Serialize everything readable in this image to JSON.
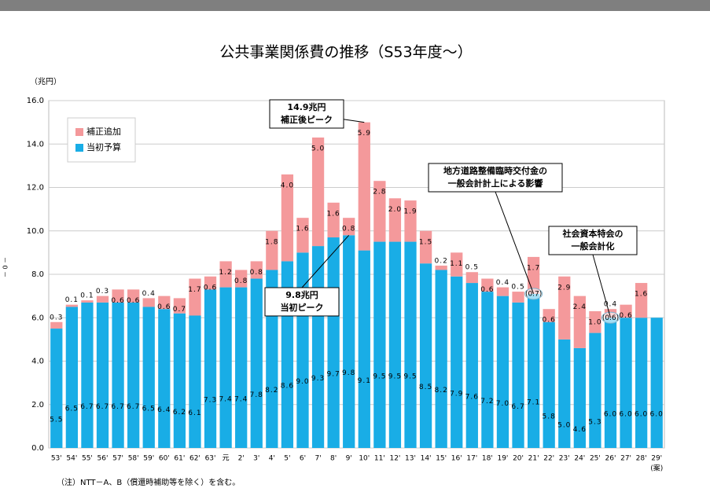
{
  "chart_data": {
    "type": "stacked_bar",
    "title": "公共事業関係費の推移（S53年度～）",
    "y_unit": "（兆円）",
    "categories": [
      "53'",
      "54'",
      "55'",
      "56'",
      "57'",
      "58'",
      "59'",
      "60'",
      "61'",
      "62'",
      "63'",
      "元",
      "2'",
      "3'",
      "4'",
      "5'",
      "6'",
      "7'",
      "8'",
      "9'",
      "10'",
      "11'",
      "12'",
      "13'",
      "14'",
      "15'",
      "16'",
      "17'",
      "18'",
      "19'",
      "20'",
      "21'",
      "22'",
      "23'",
      "24'",
      "25'",
      "26'",
      "27'",
      "28'",
      "29'"
    ],
    "last_category_note": "(案)",
    "series": [
      {
        "name": "当初予算",
        "color": "#19ade6",
        "values": [
          5.5,
          6.5,
          6.7,
          6.7,
          6.7,
          6.7,
          6.5,
          6.4,
          6.2,
          6.1,
          7.3,
          7.4,
          7.4,
          7.8,
          8.2,
          8.6,
          9.0,
          9.3,
          9.7,
          9.8,
          9.1,
          9.5,
          9.5,
          9.5,
          8.5,
          8.2,
          7.9,
          7.6,
          7.2,
          7.0,
          6.7,
          7.1,
          5.8,
          5.0,
          4.6,
          5.3,
          6.0,
          6.0,
          6.0,
          6.0
        ],
        "value_labels": [
          "5.5",
          "6.5",
          "6.7",
          "6.7",
          "6.7",
          "6.7",
          "6.5",
          "6.4",
          "6.2",
          "6.1",
          "7.3",
          "7.4",
          "7.4",
          "7.8",
          "8.2",
          "8.6",
          "9.0",
          "9.3",
          "9.7",
          "9.8",
          "9.1",
          "9.5",
          "9.5",
          "9.5",
          "8.5",
          "8.2",
          "7.9",
          "7.6",
          "7.2",
          "7.0",
          "6.7",
          "7.1",
          "5.8",
          "5.0",
          "4.6",
          "5.3",
          "6.0",
          "6.0",
          "6.0",
          "6.0"
        ]
      },
      {
        "name": "補正追加",
        "color": "#f4999b",
        "values": [
          0.3,
          0.1,
          0.1,
          0.3,
          0.6,
          0.6,
          0.4,
          0.6,
          0.7,
          1.7,
          0.6,
          1.2,
          0.8,
          0.8,
          1.8,
          4.0,
          1.6,
          5.0,
          1.6,
          0.8,
          5.9,
          2.8,
          2.0,
          1.9,
          1.5,
          0.2,
          1.1,
          0.5,
          0.6,
          0.4,
          0.5,
          1.7,
          0.6,
          2.9,
          2.4,
          1.0,
          0.4,
          0.6,
          1.6,
          null
        ],
        "value_labels": [
          "0.3",
          "0.1",
          "0.1",
          "0.3",
          "0.6",
          "0.6",
          "0.4",
          "0.6",
          "0.7",
          "1.7",
          "0.6",
          "1.2",
          "0.8",
          "0.8",
          "1.8",
          "4.0",
          "1.6",
          "5.0",
          "1.6",
          "0.8",
          "5.9",
          "2.8",
          "2.0",
          "1.9",
          "1.5",
          "0.2",
          "1.1",
          "0.5",
          "0.6",
          "0.4",
          "0.5",
          "1.7",
          "0.6",
          "2.9",
          "2.4",
          "1.0",
          "0.4",
          "0.6",
          "1.6",
          null
        ]
      }
    ],
    "ylim": [
      0,
      16
    ],
    "yticks": [
      {
        "value": 0,
        "label": "0.0"
      },
      {
        "value": 2,
        "label": "2.0"
      },
      {
        "value": 4,
        "label": "4.0"
      },
      {
        "value": 6,
        "label": "6.0"
      },
      {
        "value": 8,
        "label": "8.0"
      },
      {
        "value": 10,
        "label": "10.0"
      },
      {
        "value": 12,
        "label": "12.0"
      },
      {
        "value": 14,
        "label": "14.0"
      },
      {
        "value": 16,
        "label": "16.0"
      }
    ],
    "grid": true,
    "legend": "top-left",
    "annotations": [
      {
        "category": "21'",
        "label": "(0.7)"
      },
      {
        "category": "26'",
        "label": "(0.6)"
      }
    ],
    "callouts": [
      {
        "category": "10'",
        "lines": [
          "14.9兆円",
          "補正後ピーク"
        ]
      },
      {
        "category": "9'",
        "lines": [
          "9.8兆円",
          "当初ピーク"
        ]
      },
      {
        "category": "21'",
        "lines": [
          "地方道路整備臨時交付金の",
          "一般会計計上による影響"
        ]
      },
      {
        "category": "26'",
        "lines": [
          "社会資本特会の",
          "一般会計化"
        ]
      }
    ],
    "note": "（注）NTT－A、B（償還時補助等を除く）を含む。",
    "page_marker": "－ 0 －"
  }
}
